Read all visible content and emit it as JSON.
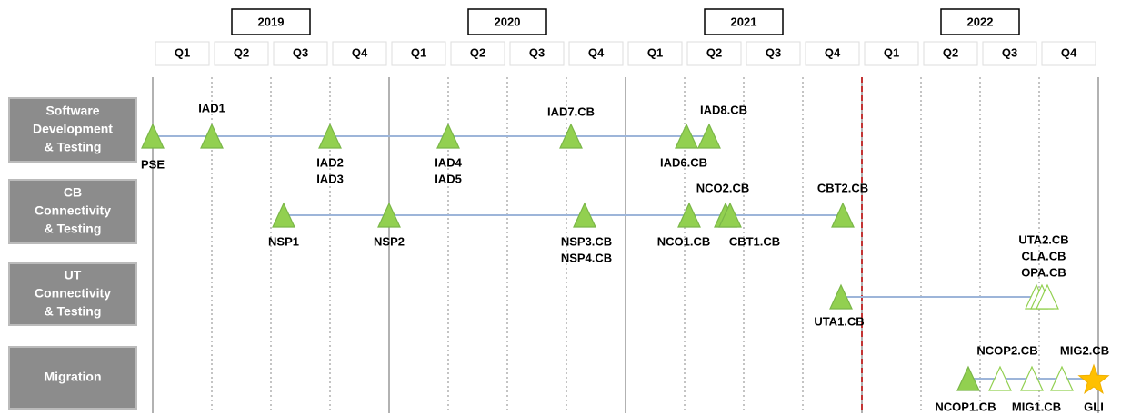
{
  "years": [
    "2019",
    "2020",
    "2021",
    "2022"
  ],
  "quarters": [
    "Q1",
    "Q2",
    "Q3",
    "Q4"
  ],
  "lanes": [
    {
      "name": [
        "Software",
        "Development",
        "& Testing"
      ],
      "milestones": [
        "PSE",
        "IAD1",
        "IAD2",
        "IAD3",
        "IAD4",
        "IAD5",
        "IAD7.CB",
        "IAD6.CB",
        "IAD8.CB"
      ]
    },
    {
      "name": [
        "CB",
        "Connectivity",
        "& Testing"
      ],
      "milestones": [
        "NSP1",
        "NSP2",
        "NSP3.CB",
        "NSP4.CB",
        "NCO1.CB",
        "NCO2.CB",
        "CBT1.CB",
        "CBT2.CB"
      ]
    },
    {
      "name": [
        "UT",
        "Connectivity",
        "& Testing"
      ],
      "milestones": [
        "UTA1.CB",
        "UTA2.CB",
        "CLA.CB",
        "OPA.CB"
      ]
    },
    {
      "name": [
        "Migration"
      ],
      "milestones": [
        "NCOP1.CB",
        "NCOP2.CB",
        "MIG1.CB",
        "MIG2.CB",
        "GLI"
      ]
    }
  ]
}
